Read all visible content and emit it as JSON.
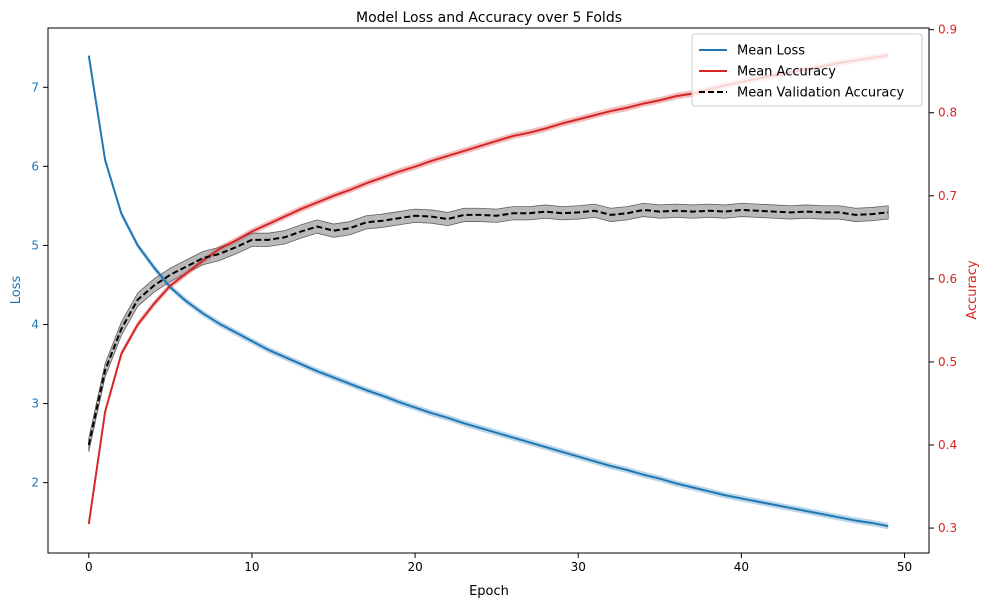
{
  "chart_data": {
    "type": "line",
    "title": "Model Loss and Accuracy over 5 Folds",
    "xlabel": "Epoch",
    "ylabel_left": "Loss",
    "ylabel_right": "Accuracy",
    "xlim": [
      -2.5,
      51.5
    ],
    "ylim_left": [
      1.11,
      7.75
    ],
    "ylim_right": [
      0.27,
      0.902
    ],
    "xticks": [
      0,
      10,
      20,
      30,
      40,
      50
    ],
    "yticks_left": [
      2,
      3,
      4,
      5,
      6,
      7
    ],
    "yticks_right": [
      0.3,
      0.4,
      0.5,
      0.6,
      0.7,
      0.8,
      0.9
    ],
    "grid": false,
    "legend_position": "top-right",
    "colors": {
      "loss": "#1f77b4",
      "accuracy": "#d62728",
      "val_accuracy": "#000000",
      "left_axis_text": "#1f77b4",
      "right_axis_text": "#d62728"
    },
    "x": [
      0,
      1,
      2,
      3,
      4,
      5,
      6,
      7,
      8,
      9,
      10,
      11,
      12,
      13,
      14,
      15,
      16,
      17,
      18,
      19,
      20,
      21,
      22,
      23,
      24,
      25,
      26,
      27,
      28,
      29,
      30,
      31,
      32,
      33,
      34,
      35,
      36,
      37,
      38,
      39,
      40,
      41,
      42,
      43,
      44,
      45,
      46,
      47,
      48,
      49
    ],
    "series": [
      {
        "name": "Mean Loss",
        "axis": "left",
        "style": "solid",
        "values": [
          7.4,
          6.08,
          5.4,
          5.0,
          4.72,
          4.47,
          4.29,
          4.14,
          4.01,
          3.9,
          3.79,
          3.68,
          3.59,
          3.5,
          3.41,
          3.33,
          3.25,
          3.17,
          3.1,
          3.02,
          2.95,
          2.88,
          2.82,
          2.75,
          2.69,
          2.63,
          2.57,
          2.51,
          2.45,
          2.39,
          2.33,
          2.27,
          2.21,
          2.16,
          2.1,
          2.05,
          1.99,
          1.94,
          1.89,
          1.84,
          1.8,
          1.76,
          1.72,
          1.68,
          1.64,
          1.6,
          1.56,
          1.52,
          1.49,
          1.45
        ],
        "band": 0.04
      },
      {
        "name": "Mean Accuracy",
        "axis": "right",
        "style": "solid",
        "values": [
          0.305,
          0.44,
          0.51,
          0.545,
          0.57,
          0.592,
          0.607,
          0.622,
          0.636,
          0.646,
          0.657,
          0.666,
          0.675,
          0.684,
          0.692,
          0.7,
          0.707,
          0.715,
          0.722,
          0.729,
          0.735,
          0.742,
          0.748,
          0.754,
          0.76,
          0.766,
          0.772,
          0.776,
          0.781,
          0.787,
          0.792,
          0.797,
          0.802,
          0.806,
          0.811,
          0.815,
          0.82,
          0.823,
          0.828,
          0.833,
          0.837,
          0.841,
          0.845,
          0.849,
          0.852,
          0.856,
          0.86,
          0.863,
          0.866,
          0.869
        ],
        "band": 0.004
      },
      {
        "name": "Mean Validation Accuracy",
        "axis": "right",
        "style": "dashed",
        "values": [
          0.4,
          0.49,
          0.54,
          0.575,
          0.592,
          0.605,
          0.615,
          0.625,
          0.63,
          0.638,
          0.647,
          0.647,
          0.65,
          0.657,
          0.663,
          0.658,
          0.661,
          0.668,
          0.67,
          0.673,
          0.676,
          0.675,
          0.672,
          0.677,
          0.677,
          0.676,
          0.679,
          0.679,
          0.681,
          0.679,
          0.68,
          0.682,
          0.677,
          0.679,
          0.683,
          0.681,
          0.682,
          0.681,
          0.682,
          0.681,
          0.683,
          0.682,
          0.681,
          0.68,
          0.681,
          0.68,
          0.68,
          0.677,
          0.678,
          0.68
        ],
        "band": 0.008
      }
    ]
  }
}
